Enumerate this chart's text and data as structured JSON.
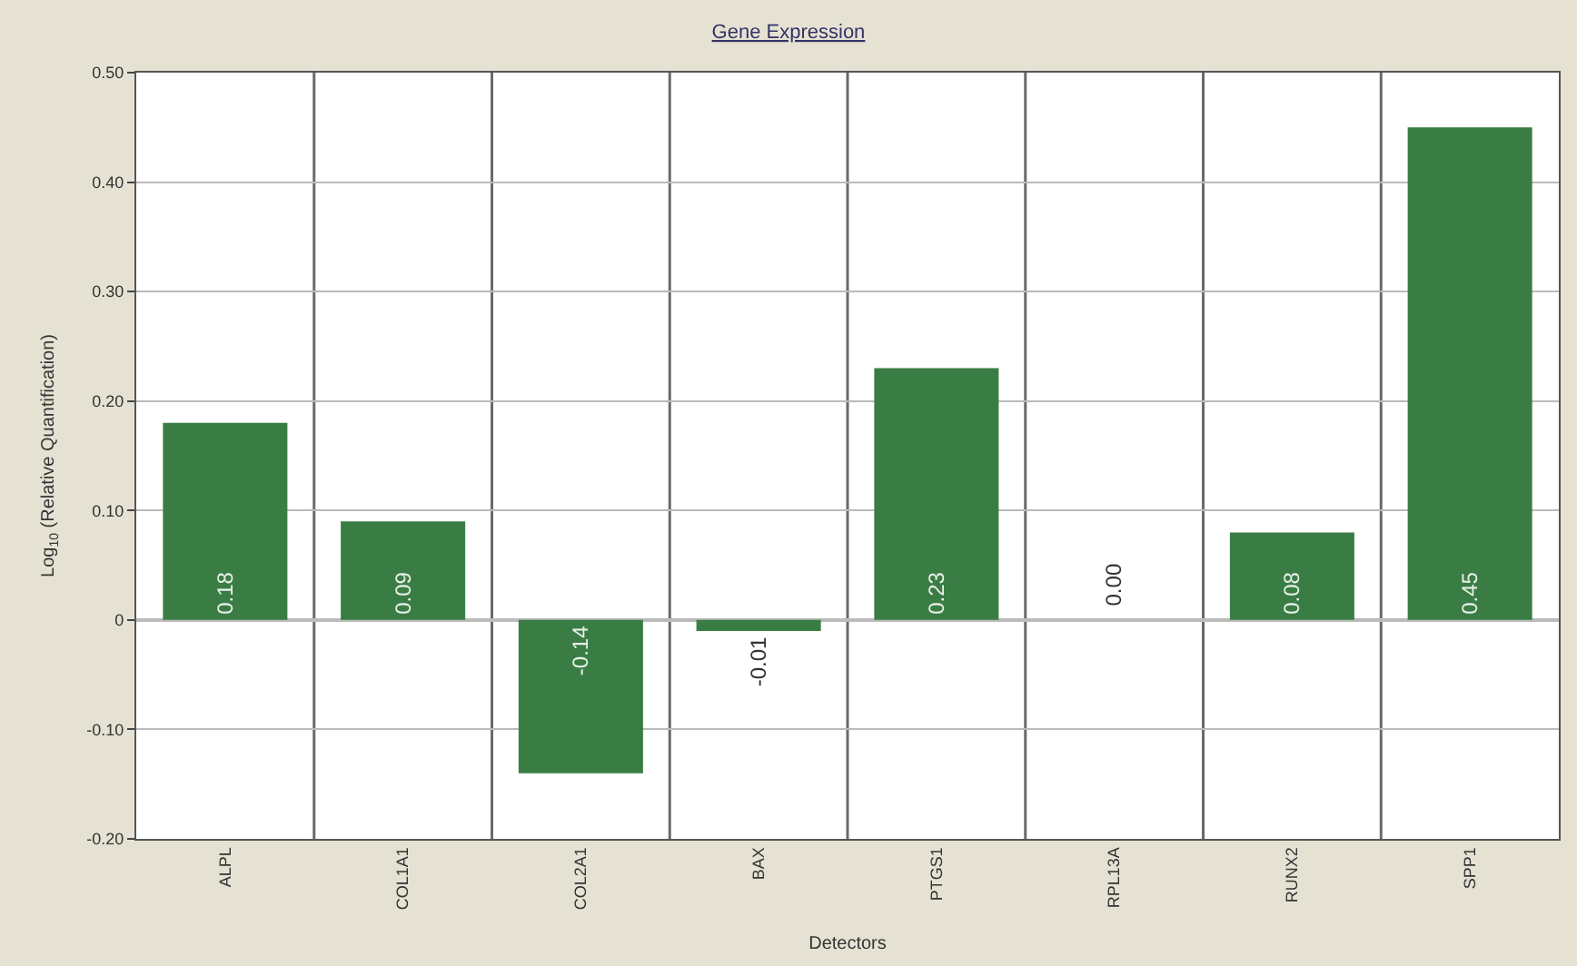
{
  "chart_data": {
    "type": "bar",
    "title": "Gene Expression",
    "xlabel": "Detectors",
    "ylabel": "Log$_{10}$ (Relative Quantification)",
    "categories": [
      "ALPL",
      "COL1A1",
      "COL2A1",
      "BAX",
      "PTGS1",
      "RPL13A",
      "RUNX2",
      "SPP1"
    ],
    "values": [
      0.18,
      0.09,
      -0.14,
      -0.01,
      0.23,
      0.0,
      0.08,
      0.45
    ],
    "value_labels": [
      "0.18",
      "0.09",
      "-0.14",
      "-0.01",
      "0.23",
      "0.00",
      "0.08",
      "0.45"
    ],
    "color": "#3a7d44",
    "grid": true,
    "ylim": [
      -0.2,
      0.5
    ],
    "yticks": [
      {
        "value": -0.2,
        "label": "-0.20"
      },
      {
        "value": -0.1,
        "label": "-0.10"
      },
      0,
      {
        "value": 0.1,
        "label": "0.10"
      },
      {
        "value": 0.2,
        "label": "0.20"
      },
      {
        "value": 0.3,
        "label": "0.30"
      },
      {
        "value": 0.4,
        "label": "0.40"
      },
      {
        "value": 0.5,
        "label": "0.50"
      }
    ]
  }
}
